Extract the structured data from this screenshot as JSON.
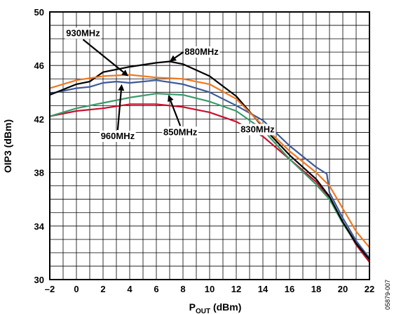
{
  "chart_data": {
    "type": "line",
    "title": "",
    "xlabel_main": "P",
    "xlabel_sub": "OUT",
    "xlabel_unit": " (dBm)",
    "ylabel": "OIP3 (dBm)",
    "xlim": [
      -2,
      22
    ],
    "ylim": [
      30,
      50
    ],
    "xticks": [
      -2,
      0,
      2,
      4,
      6,
      8,
      10,
      12,
      14,
      16,
      18,
      20,
      22
    ],
    "xtick_labels": [
      "–2",
      "0",
      "2",
      "4",
      "6",
      "8",
      "10",
      "12",
      "14",
      "16",
      "18",
      "20",
      "22"
    ],
    "yticks": [
      30,
      34,
      38,
      42,
      46,
      50
    ],
    "ytick_labels": [
      "30",
      "34",
      "38",
      "42",
      "46",
      "50"
    ],
    "grid": true,
    "figure_id": "05879-007",
    "series": [
      {
        "name": "830MHz",
        "color": "#c8102e",
        "x": [
          -2,
          0,
          2,
          4,
          6,
          8,
          10,
          12,
          14,
          16,
          18,
          19,
          20,
          21,
          22
        ],
        "y": [
          42.2,
          42.6,
          42.8,
          43.1,
          43.1,
          42.9,
          42.5,
          41.8,
          40.7,
          39.0,
          37.3,
          36.1,
          34.3,
          32.6,
          31.3
        ]
      },
      {
        "name": "850MHz",
        "color": "#3a9a6a",
        "x": [
          -2,
          0,
          2,
          4,
          6,
          8,
          10,
          12,
          14,
          16,
          18,
          19,
          20,
          21,
          22
        ],
        "y": [
          42.2,
          42.8,
          43.2,
          43.6,
          43.9,
          43.8,
          43.3,
          42.6,
          41.2,
          39.0,
          37.1,
          36.0,
          34.2,
          32.7,
          31.5
        ]
      },
      {
        "name": "960MHz",
        "color": "#3c5a9a",
        "x": [
          -2,
          0,
          1,
          2,
          3,
          4,
          6,
          8,
          10,
          12,
          14,
          16,
          18,
          18.8,
          19,
          20,
          21,
          22
        ],
        "y": [
          43.9,
          44.3,
          44.4,
          44.7,
          44.8,
          44.7,
          44.9,
          44.6,
          44.0,
          43.0,
          41.9,
          40.0,
          38.4,
          37.9,
          36.5,
          34.6,
          32.9,
          31.6
        ]
      },
      {
        "name": "880MHz",
        "color": "#000000",
        "x": [
          -2,
          0,
          1,
          2,
          4,
          6,
          7,
          8,
          10,
          12,
          14,
          16,
          18,
          19,
          20,
          21,
          22
        ],
        "y": [
          43.8,
          44.6,
          44.8,
          45.5,
          45.9,
          46.2,
          46.3,
          46.1,
          45.2,
          43.7,
          41.4,
          39.3,
          37.5,
          36.2,
          34.3,
          32.7,
          31.5
        ]
      },
      {
        "name": "930MHz",
        "color": "#f07820",
        "x": [
          -2,
          0,
          2,
          4,
          6,
          8,
          10,
          12,
          14,
          16,
          18,
          19,
          20,
          21,
          22
        ],
        "y": [
          44.3,
          44.9,
          45.2,
          45.3,
          45.1,
          45.0,
          44.6,
          43.5,
          41.5,
          39.6,
          38.0,
          37.0,
          35.3,
          33.6,
          32.4
        ]
      }
    ],
    "annotations": [
      {
        "text": "930MHz",
        "label_x": 0.5,
        "label_y": 48.2,
        "arrow_to": [
          3.9,
          45.2
        ]
      },
      {
        "text": "880MHz",
        "label_x": 9.4,
        "label_y": 46.8,
        "arrow_to": [
          7.0,
          46.3
        ]
      },
      {
        "text": "960MHz",
        "label_x": 3.1,
        "label_y": 40.5,
        "arrow_to": [
          3.4,
          44.6
        ]
      },
      {
        "text": "850MHz",
        "label_x": 7.8,
        "label_y": 40.8,
        "arrow_to": [
          6.9,
          43.8
        ]
      },
      {
        "text": "830MHz",
        "label_x": 13.6,
        "label_y": 41.0,
        "arrow_to": []
      }
    ]
  }
}
